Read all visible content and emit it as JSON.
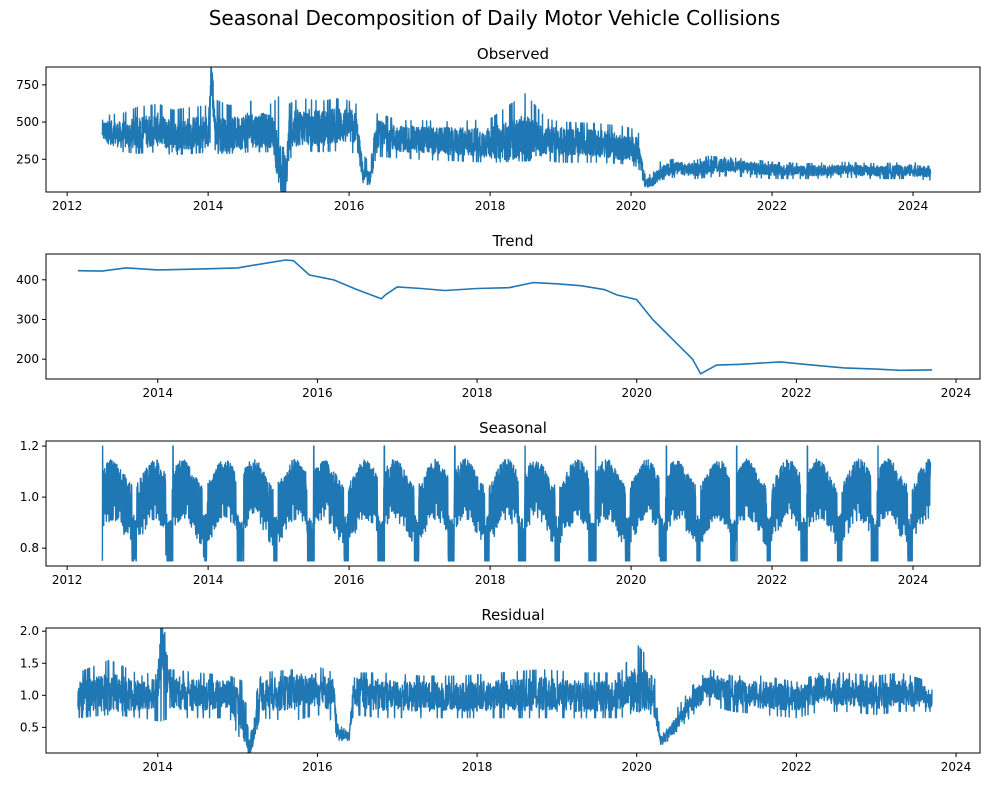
{
  "figure": {
    "title": "Seasonal Decomposition of Daily Motor Vehicle Collisions"
  },
  "colors": {
    "line": "#1f77b4",
    "axis": "#000000"
  },
  "chart_data": [
    {
      "type": "line",
      "title": "Observed",
      "xlabel": "",
      "ylabel": "",
      "xlim": [
        2011.7,
        2024.95
      ],
      "ylim": [
        30,
        870
      ],
      "x_ticks": [
        2012,
        2014,
        2016,
        2018,
        2020,
        2022,
        2024
      ],
      "y_ticks": [
        250,
        500,
        750
      ],
      "grid": false,
      "series": [
        {
          "x": [
            2012.5,
            2012.8,
            2013.0,
            2013.3,
            2013.5,
            2013.8,
            2014.0,
            2014.05,
            2014.1,
            2014.3,
            2014.6,
            2014.9,
            2015.1,
            2015.15,
            2015.3,
            2015.6,
            2015.9,
            2016.1,
            2016.2,
            2016.3,
            2016.4,
            2016.7,
            2017.0,
            2017.5,
            2018.0,
            2018.5,
            2018.8,
            2019.0,
            2019.5,
            2019.9,
            2020.1,
            2020.2,
            2020.3,
            2020.4,
            2020.6,
            2020.9,
            2021.1,
            2021.4,
            2021.7,
            2022.0,
            2022.5,
            2023.0,
            2023.5,
            2024.0,
            2024.25
          ],
          "y": [
            440,
            410,
            430,
            450,
            400,
            430,
            440,
            840,
            420,
            410,
            450,
            440,
            70,
            420,
            470,
            460,
            480,
            460,
            140,
            120,
            410,
            390,
            380,
            370,
            360,
            390,
            380,
            370,
            360,
            330,
            310,
            90,
            100,
            160,
            190,
            180,
            200,
            210,
            190,
            180,
            170,
            180,
            170,
            175,
            160
          ],
          "band_high": [
            540,
            560,
            600,
            620,
            580,
            600,
            610,
            840,
            650,
            610,
            640,
            620,
            720,
            620,
            660,
            640,
            660,
            620,
            280,
            220,
            560,
            510,
            510,
            500,
            520,
            690,
            520,
            500,
            490,
            470,
            440,
            140,
            150,
            230,
            250,
            240,
            270,
            260,
            250,
            230,
            220,
            230,
            220,
            230,
            200
          ],
          "band_low": [
            330,
            300,
            290,
            300,
            280,
            290,
            300,
            420,
            290,
            290,
            300,
            300,
            70,
            250,
            310,
            300,
            310,
            290,
            110,
            100,
            270,
            260,
            250,
            240,
            230,
            240,
            240,
            230,
            230,
            220,
            200,
            60,
            70,
            110,
            130,
            120,
            130,
            140,
            130,
            120,
            120,
            130,
            120,
            120,
            110
          ]
        }
      ]
    },
    {
      "type": "line",
      "title": "Trend",
      "xlabel": "",
      "ylabel": "",
      "xlim": [
        2012.6,
        2024.3
      ],
      "ylim": [
        150,
        465
      ],
      "x_ticks": [
        2014,
        2016,
        2018,
        2020,
        2022,
        2024
      ],
      "y_ticks": [
        200,
        300,
        400
      ],
      "grid": false,
      "series": [
        {
          "x": [
            2013.0,
            2013.3,
            2013.6,
            2014.0,
            2014.5,
            2015.0,
            2015.3,
            2015.6,
            2015.7,
            2015.9,
            2016.2,
            2016.5,
            2016.7,
            2016.8,
            2016.85,
            2017.0,
            2017.3,
            2017.6,
            2018.0,
            2018.4,
            2018.7,
            2019.0,
            2019.3,
            2019.6,
            2019.75,
            2020.0,
            2020.2,
            2020.5,
            2020.7,
            2020.8,
            2021.0,
            2021.3,
            2021.8,
            2022.2,
            2022.6,
            2023.0,
            2023.3,
            2023.7
          ],
          "y": [
            423,
            422,
            430,
            425,
            427,
            430,
            440,
            450,
            448,
            412,
            400,
            375,
            360,
            352,
            362,
            382,
            378,
            373,
            378,
            380,
            393,
            390,
            385,
            375,
            362,
            350,
            300,
            240,
            200,
            163,
            185,
            187,
            193,
            185,
            178,
            175,
            172,
            173
          ]
        }
      ]
    },
    {
      "type": "line",
      "title": "Seasonal",
      "xlabel": "",
      "ylabel": "",
      "xlim": [
        2011.7,
        2024.95
      ],
      "ylim": [
        0.73,
        1.22
      ],
      "x_ticks": [
        2012,
        2014,
        2016,
        2018,
        2020,
        2022,
        2024
      ],
      "y_ticks": [
        0.8,
        1.0,
        1.2
      ],
      "grid": false,
      "pattern": {
        "x_start": 2012.5,
        "x_end": 2024.25,
        "period_years": 1,
        "high": 1.12,
        "low": 0.82,
        "peak": 1.2,
        "trough": 0.75
      }
    },
    {
      "type": "line",
      "title": "Residual",
      "xlabel": "",
      "ylabel": "",
      "xlim": [
        2012.6,
        2024.3
      ],
      "ylim": [
        0.1,
        2.05
      ],
      "x_ticks": [
        2014,
        2016,
        2018,
        2020,
        2022,
        2024
      ],
      "y_ticks": [
        0.5,
        1.0,
        1.5,
        2.0
      ],
      "grid": false,
      "series": [
        {
          "x": [
            2013.0,
            2013.4,
            2013.8,
            2014.0,
            2014.05,
            2014.15,
            2014.5,
            2014.9,
            2015.1,
            2015.15,
            2015.3,
            2015.7,
            2016.0,
            2016.2,
            2016.25,
            2016.4,
            2016.45,
            2016.8,
            2017.3,
            2017.8,
            2018.3,
            2018.8,
            2019.3,
            2019.8,
            2020.0,
            2020.2,
            2020.3,
            2020.4,
            2020.7,
            2020.9,
            2021.2,
            2021.6,
            2022.0,
            2022.3,
            2022.6,
            2023.0,
            2023.3,
            2023.7
          ],
          "y": [
            1.0,
            1.05,
            0.98,
            1.1,
            1.95,
            1.05,
            1.0,
            1.02,
            0.6,
            0.15,
            1.0,
            1.05,
            1.1,
            1.0,
            0.45,
            0.35,
            1.05,
            1.0,
            0.98,
            0.97,
            1.0,
            1.02,
            0.98,
            1.0,
            1.1,
            1.05,
            0.3,
            0.4,
            0.9,
            1.15,
            1.05,
            1.0,
            0.95,
            1.1,
            1.05,
            1.0,
            1.05,
            0.95
          ],
          "band_high": [
            1.35,
            1.55,
            1.3,
            1.4,
            1.95,
            1.4,
            1.35,
            1.3,
            1.2,
            0.6,
            1.35,
            1.4,
            1.45,
            1.35,
            0.6,
            0.5,
            1.35,
            1.35,
            1.3,
            1.3,
            1.35,
            1.4,
            1.35,
            1.35,
            1.8,
            1.5,
            0.5,
            0.6,
            1.15,
            1.4,
            1.3,
            1.3,
            1.2,
            1.35,
            1.35,
            1.3,
            1.35,
            1.2
          ],
          "band_low": [
            0.65,
            0.7,
            0.65,
            0.6,
            0.6,
            0.65,
            0.65,
            0.65,
            0.15,
            0.15,
            0.65,
            0.6,
            0.7,
            0.6,
            0.3,
            0.3,
            0.7,
            0.65,
            0.65,
            0.65,
            0.65,
            0.65,
            0.65,
            0.65,
            0.75,
            0.7,
            0.28,
            0.3,
            0.7,
            0.85,
            0.75,
            0.7,
            0.65,
            0.75,
            0.75,
            0.7,
            0.75,
            0.75
          ]
        }
      ]
    }
  ]
}
